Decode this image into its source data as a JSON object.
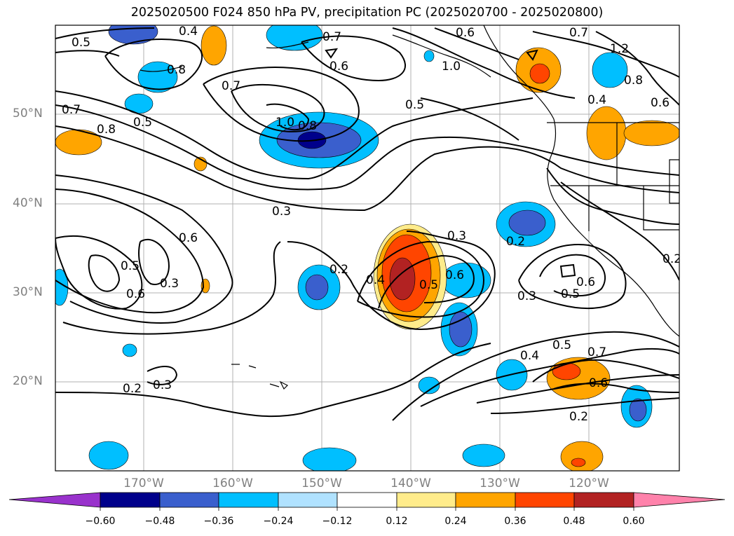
{
  "title": "2025020500 F024 850 hPa PV, precipitation PC (2025020700 - 2025020800)",
  "lat_labels": [
    "50°N",
    "40°N",
    "30°N",
    "20°N"
  ],
  "lon_labels": [
    "170°W",
    "160°W",
    "150°W",
    "140°W",
    "130°W",
    "120°W"
  ],
  "contour_labels": [
    "0.5",
    "0.4",
    "0.7",
    "0.6",
    "0.8",
    "0.7",
    "0.5",
    "0.7",
    "0.8",
    "1.0",
    "0.8",
    "0.5",
    "0.3",
    "0.6",
    "0.2",
    "0.4",
    "0.3",
    "0.5",
    "0.6",
    "0.2",
    "0.3",
    "0.5",
    "0.6",
    "0.4",
    "0.5",
    "0.7",
    "0.6",
    "0.2",
    "0.3",
    "0.2",
    "0.8",
    "0.6",
    "0.4",
    "1.2",
    "0.6",
    "0.2",
    "0.3",
    "0.5",
    "0.6",
    "0.7",
    "1.0"
  ],
  "colorbar": {
    "ticks": [
      "−0.60",
      "−0.48",
      "−0.36",
      "−0.24",
      "−0.12",
      "0.12",
      "0.24",
      "0.36",
      "0.48",
      "0.60"
    ],
    "colors": [
      "#9932cc",
      "#00008b",
      "#3a5fcd",
      "#00bfff",
      "#b0e2ff",
      "#ffffff",
      "#ffec8b",
      "#ffa500",
      "#ff4500",
      "#b22222",
      "#ff82ab"
    ]
  }
}
